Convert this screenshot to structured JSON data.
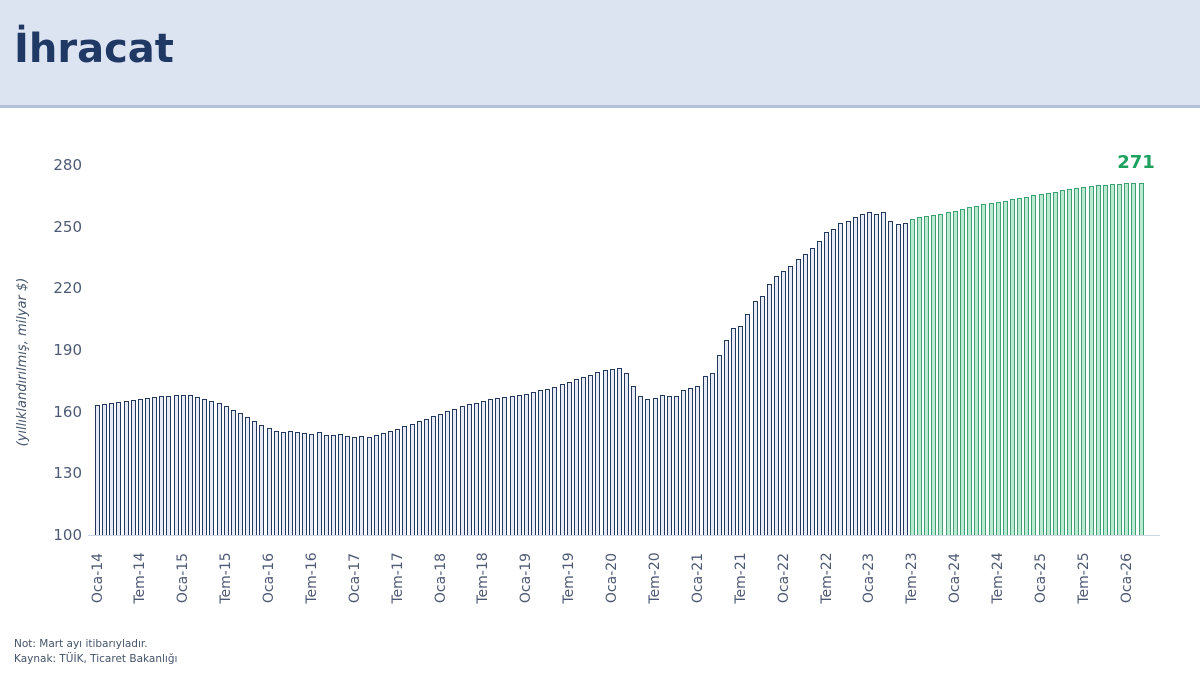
{
  "header": {
    "title": "İhracat",
    "title_color": "#1f3864",
    "band_color": "#dce4f2"
  },
  "chart_data": {
    "type": "bar",
    "title": "İhracat",
    "ylabel": "(yıllıklandırılmış, milyar $)",
    "ylim": [
      100,
      280
    ],
    "y_ticks": [
      100,
      130,
      160,
      190,
      220,
      250,
      280
    ],
    "grid": "off",
    "x_start": "Oca-14",
    "x_end": "Mar-26",
    "x_tick_every": 6,
    "x_tick_labels": [
      "Oca-14",
      "Tem-14",
      "Oca-15",
      "Tem-15",
      "Oca-16",
      "Tem-16",
      "Oca-17",
      "Tem-17",
      "Oca-18",
      "Tem-18",
      "Oca-19",
      "Tem-19",
      "Oca-20",
      "Tem-20",
      "Oca-21",
      "Tem-21",
      "Oca-22",
      "Tem-22",
      "Oca-23",
      "Tem-23",
      "Oca-24",
      "Tem-24",
      "Oca-25",
      "Tem-25",
      "Oca-26"
    ],
    "series": [
      {
        "key": "actual",
        "edge_color": "#24385e",
        "fill_color": "#e7ebf5",
        "values": [
          163.0,
          163.5,
          164.1,
          164.8,
          165.4,
          165.9,
          166.3,
          166.8,
          167.2,
          167.5,
          167.8,
          168.1,
          168.3,
          168.0,
          167.3,
          166.3,
          165.2,
          164.0,
          162.6,
          161.0,
          159.3,
          157.5,
          155.5,
          153.5,
          152.2,
          150.7,
          150.1,
          150.4,
          150.1,
          149.6,
          149.1,
          150.1,
          148.8,
          148.5,
          149.1,
          148.1,
          147.8,
          148.1,
          147.8,
          148.5,
          149.4,
          150.4,
          151.7,
          152.8,
          154.0,
          155.3,
          156.6,
          157.7,
          159.0,
          160.2,
          161.5,
          162.6,
          163.5,
          164.4,
          165.2,
          166.0,
          166.6,
          167.2,
          167.7,
          168.2,
          168.8,
          169.5,
          170.3,
          171.2,
          172.2,
          173.3,
          174.5,
          175.7,
          176.9,
          178.0,
          179.2,
          180.1,
          180.8,
          181.3,
          178.9,
          172.4,
          167.5,
          166.2,
          166.8,
          168.3,
          167.5,
          167.8,
          170.7,
          171.5,
          172.7,
          177.2,
          178.9,
          187.8,
          195.1,
          200.8,
          201.6,
          207.3,
          213.8,
          216.3,
          222.0,
          226.0,
          228.4,
          230.9,
          234.1,
          236.6,
          239.8,
          243.1,
          247.2,
          248.8,
          252.0,
          252.8,
          254.5,
          256.1,
          256.9,
          256.1,
          256.9,
          252.8,
          251.2,
          252.0
        ]
      },
      {
        "key": "forecast",
        "edge_color": "#3da271",
        "fill_color": "#bce9d2",
        "values": [
          253.8,
          254.6,
          255.2,
          255.8,
          256.3,
          256.9,
          257.8,
          258.6,
          259.4,
          260.1,
          260.8,
          261.5,
          262.1,
          262.7,
          263.3,
          263.9,
          264.5,
          265.2,
          265.9,
          266.5,
          267.1,
          267.7,
          268.3,
          268.8,
          269.3,
          269.7,
          270.1,
          270.4,
          270.7,
          270.9,
          271.0,
          271.0,
          271.0
        ]
      }
    ],
    "last_value_label": "271",
    "annotation_color": "#1ca15e"
  },
  "notes": {
    "line1": "Not: Mart ayı itibarıyladır.",
    "line2": "Kaynak: TÜİK, Ticaret Bakanlığı"
  }
}
